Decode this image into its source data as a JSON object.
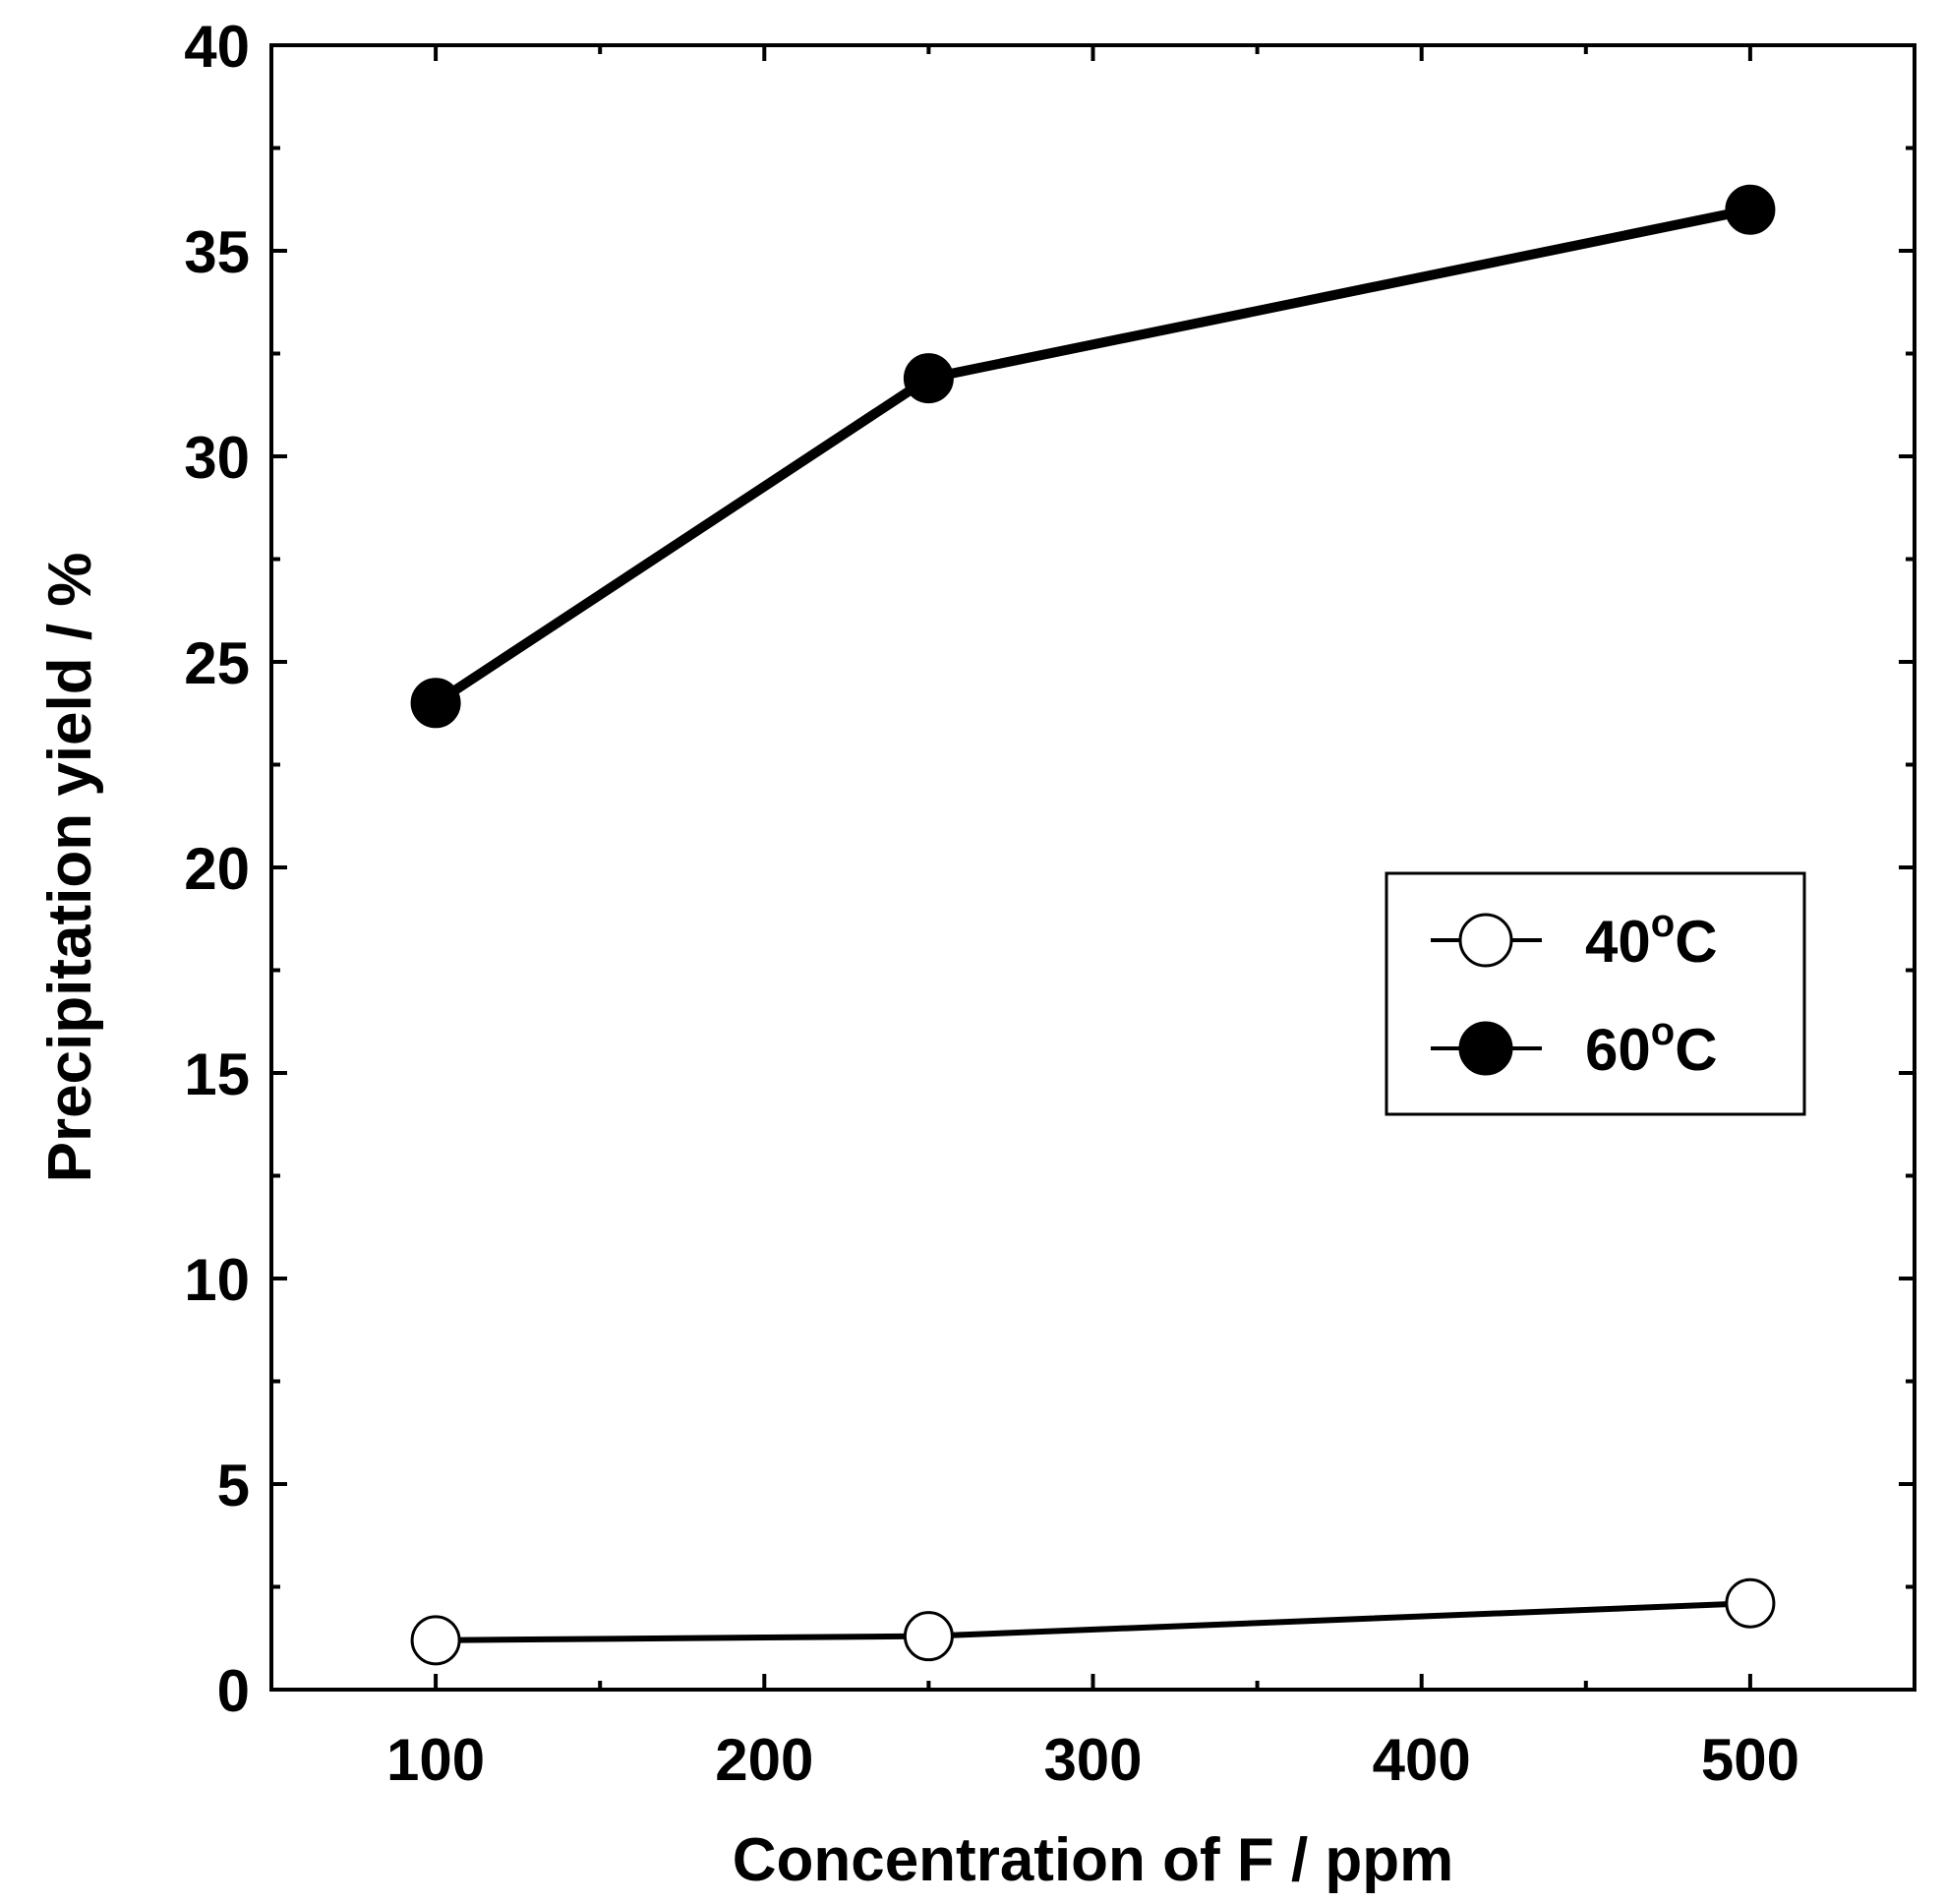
{
  "chart_data": {
    "type": "line",
    "title": "",
    "xlabel": "Concentration of F / ppm",
    "ylabel": "Precipitation yield / %",
    "xlim": [
      50,
      550
    ],
    "ylim": [
      0,
      40
    ],
    "x_ticks": [
      100,
      200,
      300,
      400,
      500
    ],
    "x_tick_labels": [
      "100",
      "200",
      "300",
      "400",
      "500"
    ],
    "y_ticks": [
      0,
      5,
      10,
      15,
      20,
      25,
      30,
      35,
      40
    ],
    "y_tick_labels": [
      "0",
      "5",
      "10",
      "15",
      "20",
      "25",
      "30",
      "35",
      "40"
    ],
    "grid": false,
    "legend_position": "right",
    "series": [
      {
        "name": "40",
        "unit": "oC",
        "marker": "open-circle",
        "color": "#000000",
        "x": [
          100,
          250,
          500
        ],
        "y": [
          1.2,
          1.3,
          2.1
        ]
      },
      {
        "name": "60",
        "unit": "oC",
        "marker": "filled-circle",
        "color": "#000000",
        "x": [
          100,
          250,
          500
        ],
        "y": [
          24.0,
          31.9,
          36.0
        ]
      }
    ]
  }
}
